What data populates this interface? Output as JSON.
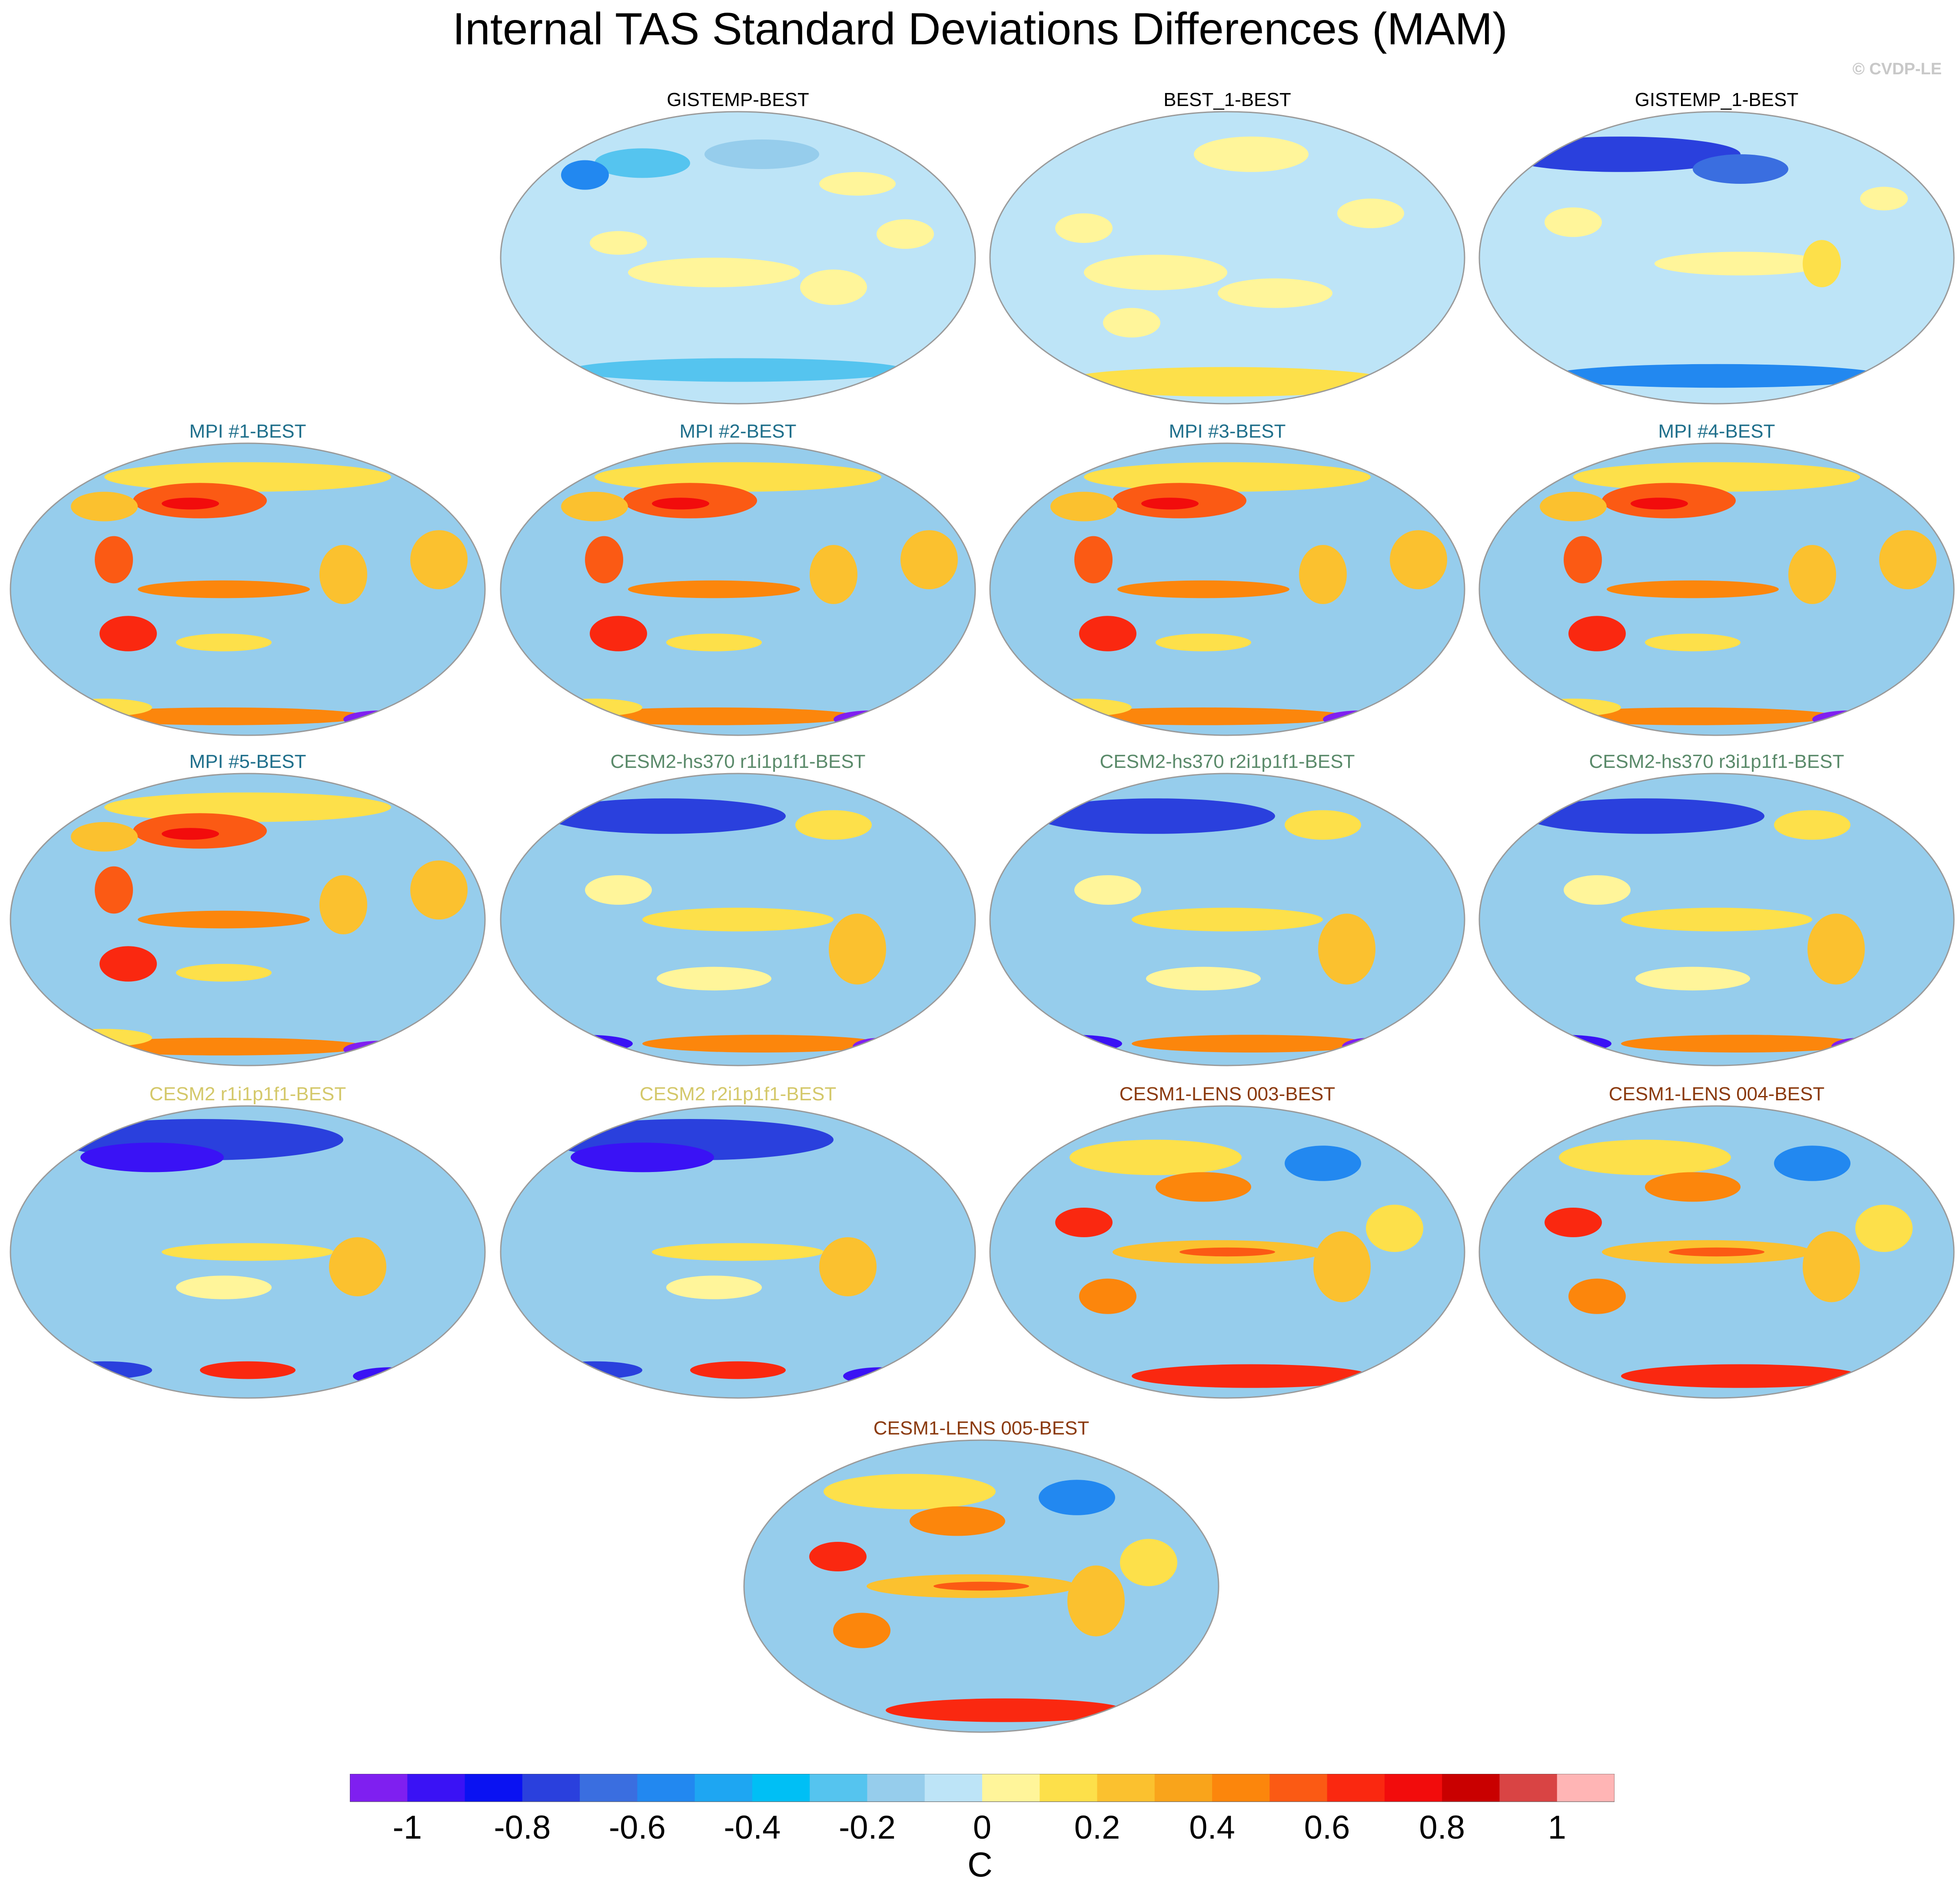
{
  "title": "Internal TAS Standard Deviations Differences (MAM)",
  "copyright": "© CVDP-LE",
  "colors": {
    "obs_title": "#000000",
    "mpi_title": "#1f6f8b",
    "cesm2_hs370_title": "#5a8a6a",
    "cesm2_title": "#d4c86a",
    "cesm1_lens_title": "#8b3a0e"
  },
  "panels": [
    {
      "label": "GISTEMP-BEST",
      "group": "obs",
      "pattern": "obs_a"
    },
    {
      "label": "BEST_1-BEST",
      "group": "obs",
      "pattern": "obs_b"
    },
    {
      "label": "GISTEMP_1-BEST",
      "group": "obs",
      "pattern": "obs_c"
    },
    {
      "label": "MPI #1-BEST",
      "group": "mpi",
      "pattern": "mpi"
    },
    {
      "label": "MPI #2-BEST",
      "group": "mpi",
      "pattern": "mpi"
    },
    {
      "label": "MPI #3-BEST",
      "group": "mpi",
      "pattern": "mpi"
    },
    {
      "label": "MPI #4-BEST",
      "group": "mpi",
      "pattern": "mpi"
    },
    {
      "label": "MPI #5-BEST",
      "group": "mpi",
      "pattern": "mpi"
    },
    {
      "label": "CESM2-hs370 r1i1p1f1-BEST",
      "group": "cesm2_hs370",
      "pattern": "cesm2"
    },
    {
      "label": "CESM2-hs370 r2i1p1f1-BEST",
      "group": "cesm2_hs370",
      "pattern": "cesm2"
    },
    {
      "label": "CESM2-hs370 r3i1p1f1-BEST",
      "group": "cesm2_hs370",
      "pattern": "cesm2"
    },
    {
      "label": "CESM2 r1i1p1f1-BEST",
      "group": "cesm2",
      "pattern": "cesm2_cold"
    },
    {
      "label": "CESM2 r2i1p1f1-BEST",
      "group": "cesm2",
      "pattern": "cesm2_cold"
    },
    {
      "label": "CESM1-LENS 003-BEST",
      "group": "cesm1_lens",
      "pattern": "lens"
    },
    {
      "label": "CESM1-LENS 004-BEST",
      "group": "cesm1_lens",
      "pattern": "lens"
    },
    {
      "label": "CESM1-LENS 005-BEST",
      "group": "cesm1_lens",
      "pattern": "lens"
    }
  ],
  "colorbar": {
    "colors": [
      "#7f1ff0",
      "#3a12f5",
      "#0a12f2",
      "#2a40dd",
      "#3a6ee0",
      "#2288f0",
      "#1ea6f2",
      "#00bff5",
      "#55c4ef",
      "#96cdec",
      "#bde4f7",
      "#fff59a",
      "#fde04a",
      "#fbc12f",
      "#f9a41b",
      "#fc860c",
      "#fb5a14",
      "#fa2810",
      "#f20c0c",
      "#c90000",
      "#d94444",
      "#ffb5b5"
    ],
    "labels": [
      "-1",
      "-0.8",
      "-0.6",
      "-0.4",
      "-0.2",
      "0",
      "0.2",
      "0.4",
      "0.6",
      "0.8",
      "1"
    ],
    "units": "C"
  }
}
